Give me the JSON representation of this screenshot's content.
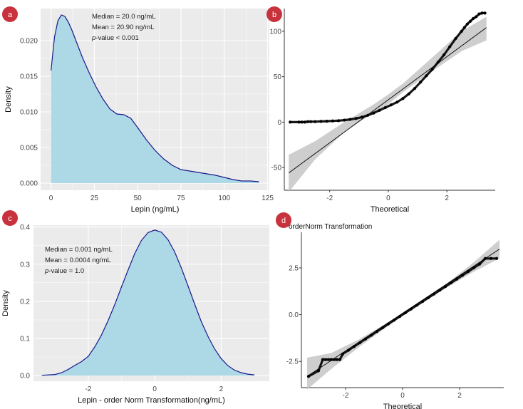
{
  "colors": {
    "panel_bg": "#ebebeb",
    "grid": "#ffffff",
    "density_fill": "#add8e6",
    "density_line": "#1a1a8c",
    "points": "#000000",
    "band": "#bdbdbd",
    "label_badge": "#c8323c"
  },
  "chart_data": [
    {
      "panel": "a",
      "type": "area",
      "title": "",
      "xlabel": "Lepin (ng/mL)",
      "ylabel": "Density",
      "xlim": [
        -6,
        126
      ],
      "ylim": [
        -0.001,
        0.0245
      ],
      "x_ticks": [
        0,
        25,
        50,
        75,
        100,
        125
      ],
      "y_ticks": [
        0.0,
        0.005,
        0.01,
        0.015,
        0.02
      ],
      "y_tick_labels": [
        "0.000",
        "0.005",
        "0.010",
        "0.015",
        "0.020"
      ],
      "x": [
        0,
        2,
        4,
        6,
        8,
        10,
        12,
        15,
        18,
        22,
        26,
        30,
        34,
        38,
        42,
        46,
        50,
        55,
        60,
        65,
        70,
        75,
        80,
        85,
        90,
        95,
        100,
        105,
        110,
        115,
        120
      ],
      "y": [
        0.0158,
        0.0205,
        0.0228,
        0.0236,
        0.0234,
        0.0226,
        0.0215,
        0.0196,
        0.0177,
        0.0155,
        0.0135,
        0.0118,
        0.0104,
        0.0097,
        0.0096,
        0.0091,
        0.0078,
        0.0061,
        0.0046,
        0.0034,
        0.0025,
        0.0019,
        0.0017,
        0.0015,
        0.0013,
        0.0011,
        0.0008,
        0.0005,
        0.0003,
        0.0003,
        0.0002
      ],
      "annotations": [
        "Median = 20.0 ng/mL",
        "Mean = 20.90 ng/mL",
        "p-value < 0.001"
      ]
    },
    {
      "panel": "b",
      "type": "scatter",
      "title": "",
      "xlabel": "Theoretical",
      "ylabel": "",
      "xlim": [
        -3.55,
        3.65
      ],
      "ylim": [
        -75,
        125
      ],
      "x_ticks": [
        -2,
        0,
        2
      ],
      "y_ticks": [
        -50,
        0,
        50,
        100
      ],
      "reference_line": {
        "x": [
          -3.4,
          3.35
        ],
        "y": [
          -56,
          104
        ]
      },
      "confidence_band": {
        "x": [
          -3.4,
          -2.5,
          -1.5,
          -0.5,
          0.0,
          0.5,
          1.5,
          2.5,
          3.35
        ],
        "upper": [
          -36,
          -21,
          0,
          19.5,
          30.5,
          42.5,
          71,
          100,
          116
        ],
        "lower": [
          -77,
          -41,
          -11,
          10.5,
          19.5,
          33,
          56,
          78,
          90
        ]
      },
      "points": {
        "x": [
          -3.35,
          -3.05,
          -2.95,
          -2.85,
          -2.75,
          -2.65,
          -2.5,
          -2.3,
          -2.1,
          -1.9,
          -1.7,
          -1.5,
          -1.3,
          -1.1,
          -0.9,
          -0.7,
          -0.5,
          -0.3,
          -0.1,
          0.1,
          0.3,
          0.5,
          0.7,
          0.9,
          1.1,
          1.3,
          1.5,
          1.7,
          1.9,
          2.1,
          2.3,
          2.5,
          2.6,
          2.7,
          2.8,
          2.9,
          3.0,
          3.1,
          3.2,
          3.3
        ],
        "y": [
          0,
          0,
          0,
          0,
          0.5,
          0.5,
          0.5,
          0.8,
          1,
          1.3,
          1.6,
          2.2,
          3,
          4,
          5.5,
          7.5,
          10,
          13,
          16,
          19,
          22,
          26,
          31,
          37,
          44,
          51,
          58,
          66,
          74,
          83,
          92,
          100,
          104,
          108,
          111,
          114,
          116,
          119,
          120,
          120
        ]
      }
    },
    {
      "panel": "c",
      "type": "area",
      "title": "",
      "xlabel": "Lepin - order Norm Transformation(ng/mL)",
      "ylabel": "Density",
      "xlim": [
        -3.65,
        3.45
      ],
      "ylim": [
        -0.015,
        0.405
      ],
      "x_ticks": [
        -2,
        0,
        2
      ],
      "y_ticks": [
        0.0,
        0.1,
        0.2,
        0.3,
        0.4
      ],
      "y_tick_labels": [
        "0.0",
        "0.1",
        "0.2",
        "0.3",
        "0.4"
      ],
      "x": [
        -3.4,
        -3.0,
        -2.8,
        -2.6,
        -2.4,
        -2.2,
        -2.0,
        -1.8,
        -1.6,
        -1.4,
        -1.2,
        -1.0,
        -0.8,
        -0.6,
        -0.4,
        -0.2,
        0.0,
        0.2,
        0.4,
        0.6,
        0.8,
        1.0,
        1.2,
        1.4,
        1.6,
        1.8,
        2.0,
        2.2,
        2.4,
        2.6,
        2.8,
        3.0
      ],
      "y": [
        0.001,
        0.003,
        0.008,
        0.017,
        0.028,
        0.038,
        0.052,
        0.078,
        0.11,
        0.149,
        0.192,
        0.239,
        0.285,
        0.329,
        0.364,
        0.385,
        0.392,
        0.386,
        0.366,
        0.333,
        0.29,
        0.242,
        0.193,
        0.146,
        0.106,
        0.072,
        0.046,
        0.027,
        0.015,
        0.008,
        0.004,
        0.002
      ],
      "annotations": [
        "Median = 0.001 ng/mL",
        "Mean = 0.0004 ng/mL",
        "p-value = 1.0"
      ]
    },
    {
      "panel": "d",
      "type": "scatter",
      "title": "orderNorm Transformation",
      "xlabel": "Theoretical",
      "ylabel": "",
      "xlim": [
        -3.55,
        3.55
      ],
      "ylim": [
        -3.9,
        4.4
      ],
      "x_ticks": [
        -2,
        0,
        2
      ],
      "y_ticks": [
        -2.5,
        0.0,
        2.5
      ],
      "y_tick_labels": [
        "-2.5",
        "0.0",
        "2.5"
      ],
      "reference_line": {
        "x": [
          -3.35,
          3.4
        ],
        "y": [
          -3.3,
          3.5
        ]
      },
      "confidence_band": {
        "x": [
          -3.35,
          -2.5,
          -1.5,
          0.0,
          1.5,
          2.5,
          3.4
        ],
        "upper": [
          -2.3,
          -2.05,
          -1.3,
          0.05,
          1.6,
          2.8,
          4.0
        ],
        "lower": [
          -4.0,
          -2.9,
          -1.7,
          -0.05,
          1.4,
          2.3,
          3.0
        ]
      },
      "points": {
        "x": [
          -3.3,
          -2.95,
          -2.8,
          -2.7,
          -2.6,
          -2.5,
          -2.4,
          -2.3,
          -2.2,
          -2.1,
          -1.9,
          -1.7,
          -1.5,
          -1.3,
          -1.1,
          -0.9,
          -0.7,
          -0.5,
          -0.3,
          -0.1,
          0.1,
          0.3,
          0.5,
          0.7,
          0.9,
          1.1,
          1.3,
          1.5,
          1.7,
          1.9,
          2.1,
          2.3,
          2.5,
          2.7,
          2.9,
          3.1,
          3.3
        ],
        "y": [
          -3.3,
          -3.0,
          -2.4,
          -2.4,
          -2.4,
          -2.4,
          -2.4,
          -2.4,
          -2.4,
          -2.1,
          -1.9,
          -1.7,
          -1.5,
          -1.3,
          -1.1,
          -0.9,
          -0.7,
          -0.5,
          -0.3,
          -0.1,
          0.1,
          0.3,
          0.5,
          0.7,
          0.9,
          1.1,
          1.3,
          1.5,
          1.7,
          1.9,
          2.1,
          2.3,
          2.5,
          2.7,
          3.0,
          3.0,
          3.0
        ]
      }
    }
  ],
  "panel_labels": [
    "a",
    "b",
    "c",
    "d"
  ]
}
